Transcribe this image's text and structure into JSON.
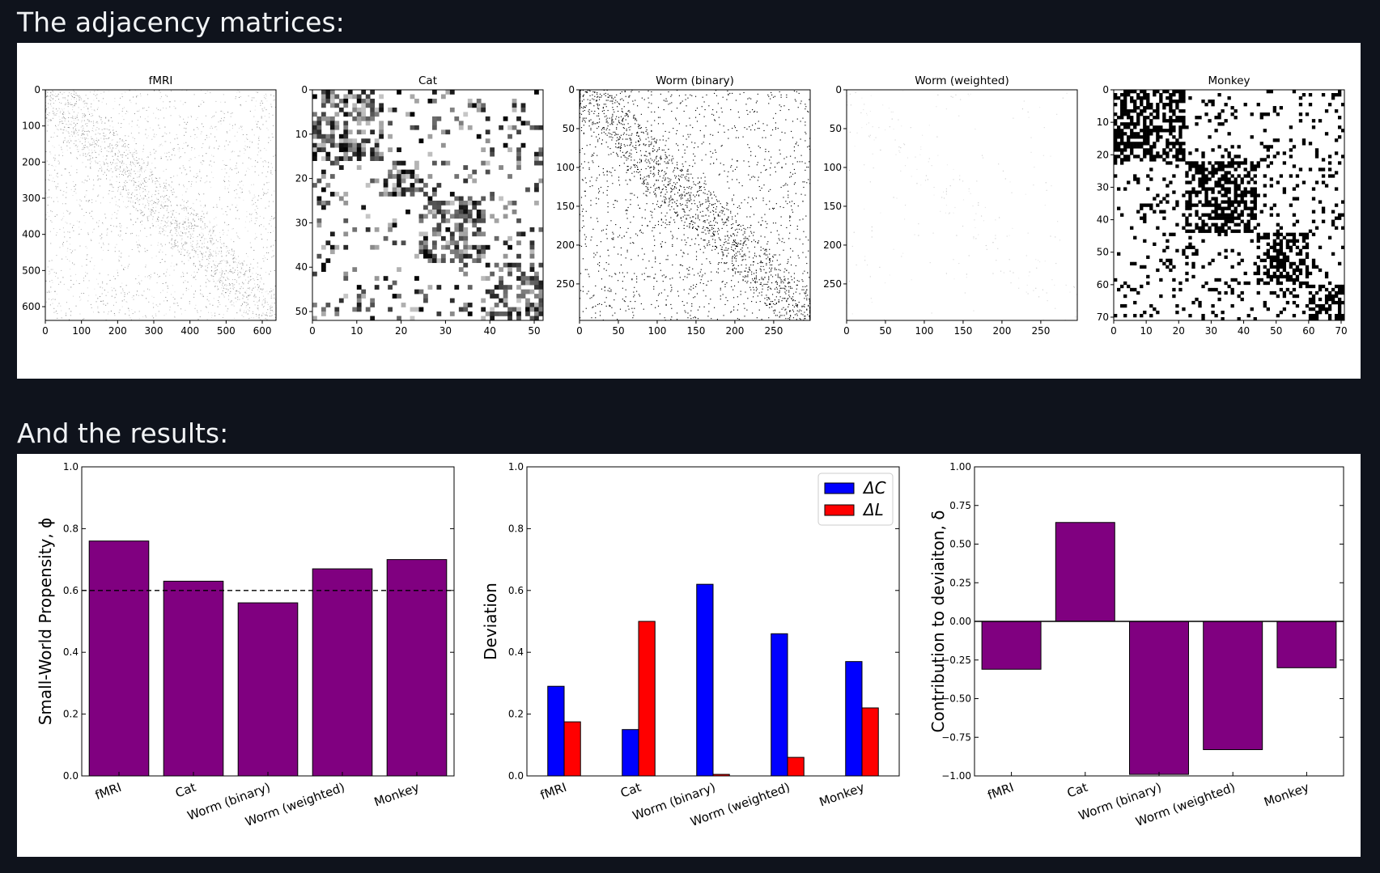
{
  "headings": {
    "matrices": "The adjacency matrices:",
    "results": "And the results:"
  },
  "matrices": [
    {
      "title": "fMRI",
      "n": 638,
      "xticks": [
        0,
        100,
        200,
        300,
        400,
        500,
        600
      ],
      "yticks": [
        0,
        100,
        200,
        300,
        400,
        500,
        600
      ],
      "style": "fine-gray"
    },
    {
      "title": "Cat",
      "n": 52,
      "xticks": [
        0,
        10,
        20,
        30,
        40,
        50
      ],
      "yticks": [
        0,
        10,
        20,
        30,
        40,
        50
      ],
      "style": "block-gray"
    },
    {
      "title": "Worm (binary)",
      "n": 297,
      "xticks": [
        0,
        50,
        100,
        150,
        200,
        250
      ],
      "yticks": [
        0,
        50,
        100,
        150,
        200,
        250
      ],
      "style": "sparse-black"
    },
    {
      "title": "Worm (weighted)",
      "n": 297,
      "xticks": [
        0,
        50,
        100,
        150,
        200,
        250
      ],
      "yticks": [
        0,
        50,
        100,
        150,
        200,
        250
      ],
      "style": "faint"
    },
    {
      "title": "Monkey",
      "n": 71,
      "xticks": [
        0,
        10,
        20,
        30,
        40,
        50,
        60,
        70
      ],
      "yticks": [
        0,
        10,
        20,
        30,
        40,
        50,
        60,
        70
      ],
      "style": "block-black"
    }
  ],
  "colors": {
    "bar": "#800080",
    "dc": "#0000ff",
    "dl": "#ff0000"
  },
  "chart_data": [
    {
      "type": "bar",
      "categories": [
        "fMRI",
        "Cat",
        "Worm (binary)",
        "Worm (weighted)",
        "Monkey"
      ],
      "values": [
        0.76,
        0.63,
        0.56,
        0.67,
        0.7
      ],
      "ylabel": "Small-World Propensity, ϕ",
      "ylim": [
        0,
        1.0
      ],
      "yticks": [
        "0.0",
        "0.2",
        "0.4",
        "0.6",
        "0.8",
        "1.0"
      ],
      "reference_line": 0.6
    },
    {
      "type": "bar",
      "categories": [
        "fMRI",
        "Cat",
        "Worm (binary)",
        "Worm (weighted)",
        "Monkey"
      ],
      "series": [
        {
          "name": "ΔC",
          "values": [
            0.29,
            0.15,
            0.62,
            0.46,
            0.37
          ]
        },
        {
          "name": "ΔL",
          "values": [
            0.175,
            0.5,
            0.005,
            0.06,
            0.22
          ]
        }
      ],
      "ylabel": "Deviation",
      "ylim": [
        0,
        1.0
      ],
      "yticks": [
        "0.0",
        "0.2",
        "0.4",
        "0.6",
        "0.8",
        "1.0"
      ],
      "legend": "top-right"
    },
    {
      "type": "bar",
      "categories": [
        "fMRI",
        "Cat",
        "Worm (binary)",
        "Worm (weighted)",
        "Monkey"
      ],
      "values": [
        -0.31,
        0.64,
        -0.99,
        -0.83,
        -0.3
      ],
      "ylabel": "Contribution to deviaiton, δ",
      "ylim": [
        -1.0,
        1.0
      ],
      "yticks": [
        "−1.00",
        "−0.75",
        "−0.50",
        "−0.25",
        "0.00",
        "0.25",
        "0.50",
        "0.75",
        "1.00"
      ]
    }
  ]
}
